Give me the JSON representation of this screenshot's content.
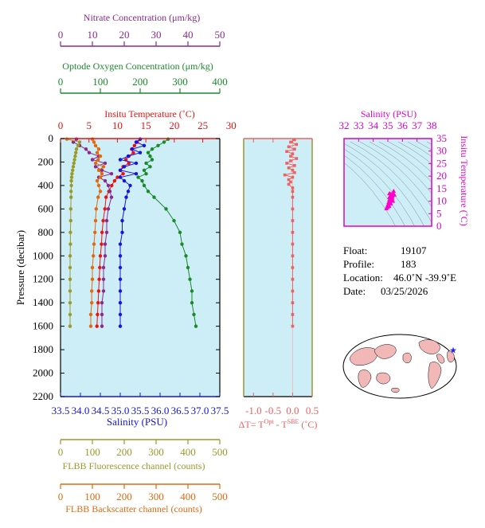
{
  "axes": {
    "nitrate": {
      "title": "Nitrate Concentration (μm/kg)",
      "ticks": [
        "0",
        "10",
        "20",
        "30",
        "40",
        "50"
      ],
      "color": "#8b2a8b"
    },
    "oxygen": {
      "title": "Optode Oxygen Concentration (μm/kg)",
      "ticks": [
        "0",
        "100",
        "200",
        "300",
        "400"
      ],
      "color": "#1a8a2a"
    },
    "temperature": {
      "title": "Insitu Temperature (˚C)",
      "ticks": [
        "0",
        "5",
        "10",
        "15",
        "20",
        "25",
        "30"
      ],
      "color": "#ee1111"
    },
    "pressure": {
      "title": "Pressure (decibar)",
      "ticks": [
        "0",
        "200",
        "400",
        "600",
        "800",
        "1000",
        "1200",
        "1400",
        "1600",
        "1800",
        "2000",
        "2200"
      ],
      "color": "#000000"
    },
    "salinity": {
      "title": "Salinity (PSU)",
      "ticks": [
        "33.5",
        "34.0",
        "34.5",
        "35.0",
        "35.5",
        "36.0",
        "36.5",
        "37.0",
        "37.5"
      ],
      "color": "#1515dd"
    },
    "fluorescence": {
      "title": "FLBB Fluorescence channel (counts)",
      "ticks": [
        "0",
        "100",
        "200",
        "300",
        "400",
        "500"
      ],
      "color": "#9a9a2a"
    },
    "backscatter": {
      "title": "FLBB Backscatter channel (counts)",
      "ticks": [
        "0",
        "100",
        "200",
        "300",
        "400",
        "500"
      ],
      "color": "#e06a10"
    },
    "delta_t": {
      "title": "ΔT= T",
      "sup1": "Opt",
      "mid": " - T",
      "sup2": "SBE",
      "unit": " (˚C)",
      "ticks": [
        "-1.0",
        "-0.5",
        "0.0",
        "0.5"
      ],
      "color": "#f06060"
    },
    "ts_salinity": {
      "title": "Salinity (PSU)",
      "ticks": [
        "32",
        "33",
        "34",
        "35",
        "36",
        "37",
        "38"
      ],
      "color": "#dd00cc"
    },
    "ts_temperature": {
      "title": "Insitu Temperature (˚C)",
      "ticks": [
        "0",
        "5",
        "10",
        "15",
        "20",
        "25",
        "30",
        "35"
      ],
      "color": "#dd00cc"
    }
  },
  "info": {
    "float_label": "Float:",
    "float_value": "19107",
    "profile_label": "Profile:",
    "profile_value": "183",
    "location_label": "Location:",
    "location_value": "46.0˚N  -39.9˚E",
    "date_label": "Date:",
    "date_value": "03/25/2026"
  },
  "colors": {
    "plot_bg": "#cdeef7",
    "map_ocean": "#ffffff",
    "map_land": "#f2b8b8",
    "marker": "#2222ee"
  },
  "chart_data": {
    "type": "line",
    "depth_profiles": {
      "pressure": [
        5,
        30,
        60,
        90,
        120,
        150,
        180,
        210,
        240,
        270,
        300,
        330,
        360,
        400,
        450,
        500,
        600,
        700,
        800,
        900,
        1000,
        1100,
        1200,
        1300,
        1400,
        1500,
        1600
      ],
      "temperature": [
        14.0,
        13.5,
        13.0,
        12.5,
        12.8,
        12.0,
        11.5,
        12.0,
        11.0,
        10.5,
        11.0,
        10.0,
        9.5,
        9.0,
        8.5,
        8.0,
        7.8,
        7.5,
        7.3,
        7.2,
        7.0,
        6.9,
        6.8,
        6.7,
        6.6,
        6.5,
        6.4
      ],
      "salinity": [
        35.5,
        35.4,
        35.6,
        35.3,
        35.5,
        35.2,
        35.0,
        35.4,
        35.1,
        35.0,
        35.4,
        35.0,
        35.1,
        35.25,
        35.2,
        35.15,
        35.1,
        35.05,
        35.05,
        35.0,
        35.0,
        35.0,
        35.0,
        35.0,
        35.0,
        35.0,
        35.0
      ],
      "oxygen": [
        270,
        260,
        245,
        230,
        220,
        225,
        230,
        215,
        225,
        210,
        215,
        195,
        205,
        210,
        220,
        235,
        265,
        285,
        300,
        305,
        315,
        320,
        325,
        330,
        330,
        335,
        340
      ],
      "nitrate": [
        5,
        4,
        6,
        8,
        9,
        12,
        10,
        14,
        11,
        13,
        16,
        12,
        14,
        15,
        15.5,
        16,
        15,
        14.5,
        14.5,
        14,
        14,
        13.5,
        13.5,
        13.5,
        13,
        13,
        13
      ],
      "fluorescence": [
        20,
        60,
        55,
        50,
        48,
        46,
        44,
        42,
        40,
        38,
        36,
        35,
        34,
        34,
        33,
        33,
        32,
        32,
        31,
        31,
        30,
        30,
        30,
        30,
        30,
        30,
        30
      ],
      "backscatter": [
        100,
        105,
        110,
        120,
        115,
        125,
        118,
        110,
        135,
        120,
        130,
        125,
        115,
        120,
        125,
        118,
        112,
        110,
        108,
        105,
        103,
        100,
        100,
        98,
        98,
        95,
        95
      ]
    },
    "delta_t_profile": {
      "pressure": [
        10,
        30,
        50,
        70,
        90,
        110,
        130,
        150,
        170,
        190,
        210,
        230,
        250,
        270,
        290,
        310,
        330,
        350,
        370,
        390,
        420,
        450,
        500,
        600,
        700,
        800,
        900,
        1000,
        1100,
        1200,
        1300,
        1400,
        1500,
        1600
      ],
      "delta_t": [
        0.05,
        -0.05,
        0.1,
        -0.1,
        0.05,
        -0.15,
        0.0,
        -0.05,
        0.1,
        -0.05,
        -0.15,
        0.05,
        -0.1,
        0.0,
        0.05,
        -0.2,
        0.0,
        -0.1,
        -0.05,
        -0.1,
        0.0,
        0.0,
        0.0,
        0.0,
        0.0,
        0.0,
        0.0,
        0.0,
        0.0,
        0.0,
        0.0,
        0.0,
        0.0,
        0.0
      ]
    },
    "ts_diagram": {
      "salinity": [
        34.9,
        35.0,
        35.1,
        35.0,
        35.15,
        35.05,
        35.2,
        35.1,
        35.25,
        35.1,
        35.3,
        35.2,
        35.15,
        35.35,
        35.05,
        35.2,
        35.4,
        35.3,
        34.95,
        35.25,
        35.3,
        35.1,
        35.45,
        35.35
      ],
      "temperature": [
        7,
        7.5,
        8,
        8.5,
        9,
        9.5,
        10,
        10.5,
        11,
        11.5,
        12,
        12.5,
        13,
        13.5,
        8,
        9,
        14,
        12,
        7.8,
        10.5,
        11,
        13,
        12.5,
        10
      ]
    },
    "float_location": {
      "lat": 46.0,
      "lon": -39.9
    }
  }
}
